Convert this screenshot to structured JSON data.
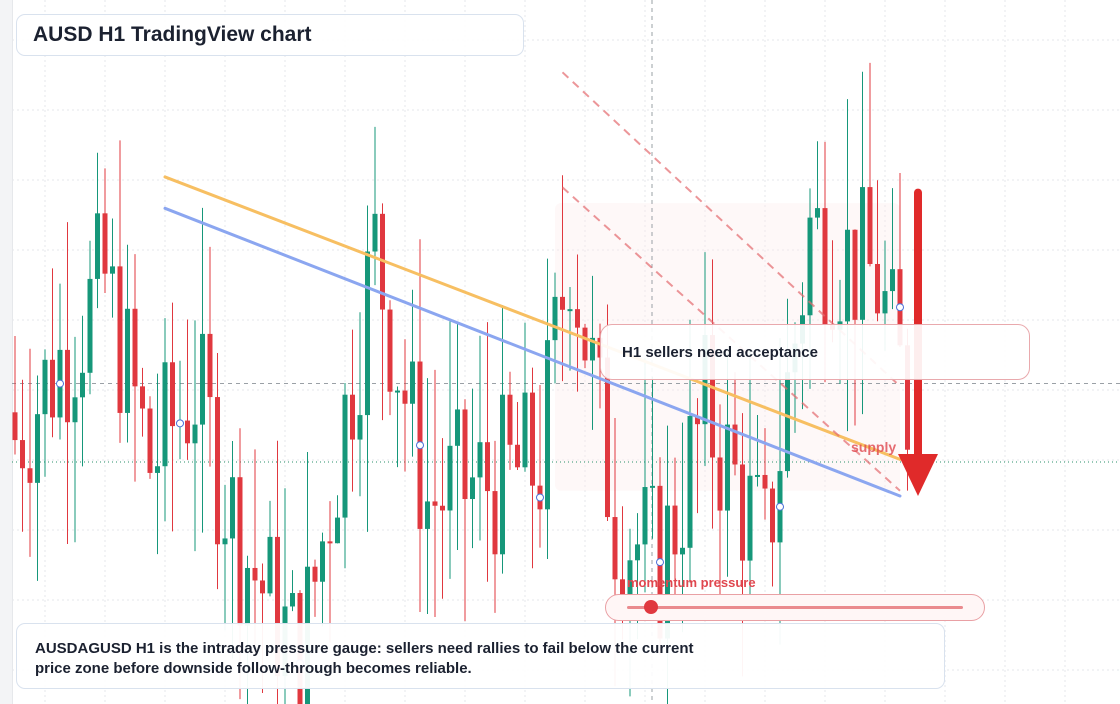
{
  "title": "AUSD H1 TradingView chart",
  "callout": "H1 sellers need acceptance",
  "supply_label": "supply",
  "momentum": {
    "label": "momentum pressure",
    "level": 0.07
  },
  "description": "AUSDAGUSD H1 is the intraday pressure gauge: sellers need rallies to fail below the current price zone before downside follow-through becomes reliable.",
  "colors": {
    "bull": "#16977a",
    "bear": "#e0383f",
    "ma_fast": "#f7bf62",
    "ma_slow": "#8ba6f0",
    "arrow": "#e02a2a",
    "grid": "#e5e7eb"
  },
  "chart_data": {
    "type": "candlestick",
    "title": "AUSD H1 TradingView chart",
    "xlabel": "",
    "ylabel": "",
    "y_range": [
      -2,
      11
    ],
    "grid": true,
    "n_candles": 120,
    "seed": 7,
    "key_levels": {
      "crosshair_price": 4.05,
      "current_price": 2.55
    },
    "overlays": [
      {
        "kind": "moving_average",
        "color": "orange",
        "from": [
          20,
          8.0
        ],
        "to": [
          118,
          2.6
        ]
      },
      {
        "kind": "moving_average",
        "color": "blue",
        "from": [
          20,
          7.4
        ],
        "to": [
          118,
          1.9
        ]
      },
      {
        "kind": "trendline",
        "style": "dashed",
        "from": [
          73,
          10.0
        ],
        "to": [
          118,
          4.0
        ]
      },
      {
        "kind": "trendline",
        "style": "dashed",
        "from": [
          73,
          7.8
        ],
        "to": [
          118,
          2.0
        ]
      }
    ],
    "supply_zone": {
      "x_range": [
        72,
        118
      ],
      "y_range": [
        2.0,
        7.5
      ],
      "label": "supply"
    },
    "arrow": {
      "direction": "down",
      "x": 125,
      "from": 7.7,
      "to": 1.9
    }
  }
}
